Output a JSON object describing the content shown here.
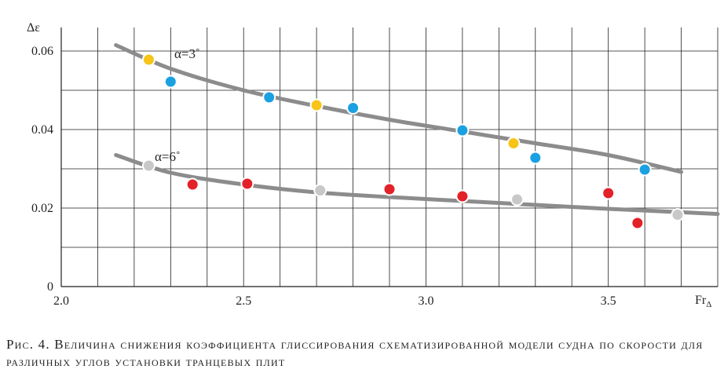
{
  "chart_data": {
    "type": "scatter",
    "ylabel": "Δε",
    "xlabel": "Fr",
    "xlabel_sub": "Δ",
    "xlim": [
      2.0,
      3.8
    ],
    "ylim": [
      0,
      0.066
    ],
    "x_ticks": [
      {
        "value": 2.0,
        "label": "2.0"
      },
      {
        "value": 2.5,
        "label": "2.5"
      },
      {
        "value": 3.0,
        "label": "3.0"
      },
      {
        "value": 3.5,
        "label": "3.5"
      }
    ],
    "y_ticks": [
      {
        "value": 0,
        "label": "0"
      },
      {
        "value": 0.02,
        "label": "0.02"
      },
      {
        "value": 0.04,
        "label": "0.04"
      },
      {
        "value": 0.06,
        "label": "0.06"
      }
    ],
    "grid": true,
    "curves": [
      {
        "label": "α=3˚",
        "color": "#8c8c8c",
        "x": [
          2.15,
          2.3,
          2.5,
          2.7,
          2.9,
          3.1,
          3.3,
          3.5,
          3.7
        ],
        "y": [
          0.0615,
          0.0555,
          0.05,
          0.046,
          0.0425,
          0.0395,
          0.0365,
          0.0335,
          0.0292
        ]
      },
      {
        "label": "α=6˚",
        "color": "#8c8c8c",
        "x": [
          2.15,
          2.3,
          2.5,
          2.7,
          2.9,
          3.1,
          3.3,
          3.5,
          3.8
        ],
        "y": [
          0.0335,
          0.029,
          0.026,
          0.024,
          0.0228,
          0.0218,
          0.0208,
          0.0198,
          0.0185
        ]
      }
    ],
    "points": [
      {
        "x": 2.24,
        "y": 0.0578,
        "color": "#f7c417"
      },
      {
        "x": 2.3,
        "y": 0.0522,
        "color": "#1ba1e2"
      },
      {
        "x": 2.57,
        "y": 0.0482,
        "color": "#1ba1e2"
      },
      {
        "x": 2.7,
        "y": 0.0462,
        "color": "#f7c417"
      },
      {
        "x": 2.8,
        "y": 0.0455,
        "color": "#1ba1e2"
      },
      {
        "x": 3.1,
        "y": 0.0398,
        "color": "#1ba1e2"
      },
      {
        "x": 3.24,
        "y": 0.0365,
        "color": "#f7c417"
      },
      {
        "x": 3.3,
        "y": 0.0328,
        "color": "#1ba1e2"
      },
      {
        "x": 3.6,
        "y": 0.0298,
        "color": "#1ba1e2"
      },
      {
        "x": 2.24,
        "y": 0.0308,
        "color": "#c8c8c8"
      },
      {
        "x": 2.36,
        "y": 0.026,
        "color": "#e32129"
      },
      {
        "x": 2.51,
        "y": 0.0262,
        "color": "#e32129"
      },
      {
        "x": 2.71,
        "y": 0.0245,
        "color": "#c8c8c8"
      },
      {
        "x": 2.9,
        "y": 0.0248,
        "color": "#e32129"
      },
      {
        "x": 3.1,
        "y": 0.023,
        "color": "#e32129"
      },
      {
        "x": 3.25,
        "y": 0.0222,
        "color": "#c8c8c8"
      },
      {
        "x": 3.5,
        "y": 0.0238,
        "color": "#e32129"
      },
      {
        "x": 3.58,
        "y": 0.0162,
        "color": "#e32129"
      },
      {
        "x": 3.69,
        "y": 0.0183,
        "color": "#c8c8c8"
      }
    ]
  },
  "caption": {
    "label": "Рис. 4.",
    "text": "Величина снижения коэффициента глиссирования схематизированной модели судна по скорости для различных углов установки транцевых плит"
  }
}
